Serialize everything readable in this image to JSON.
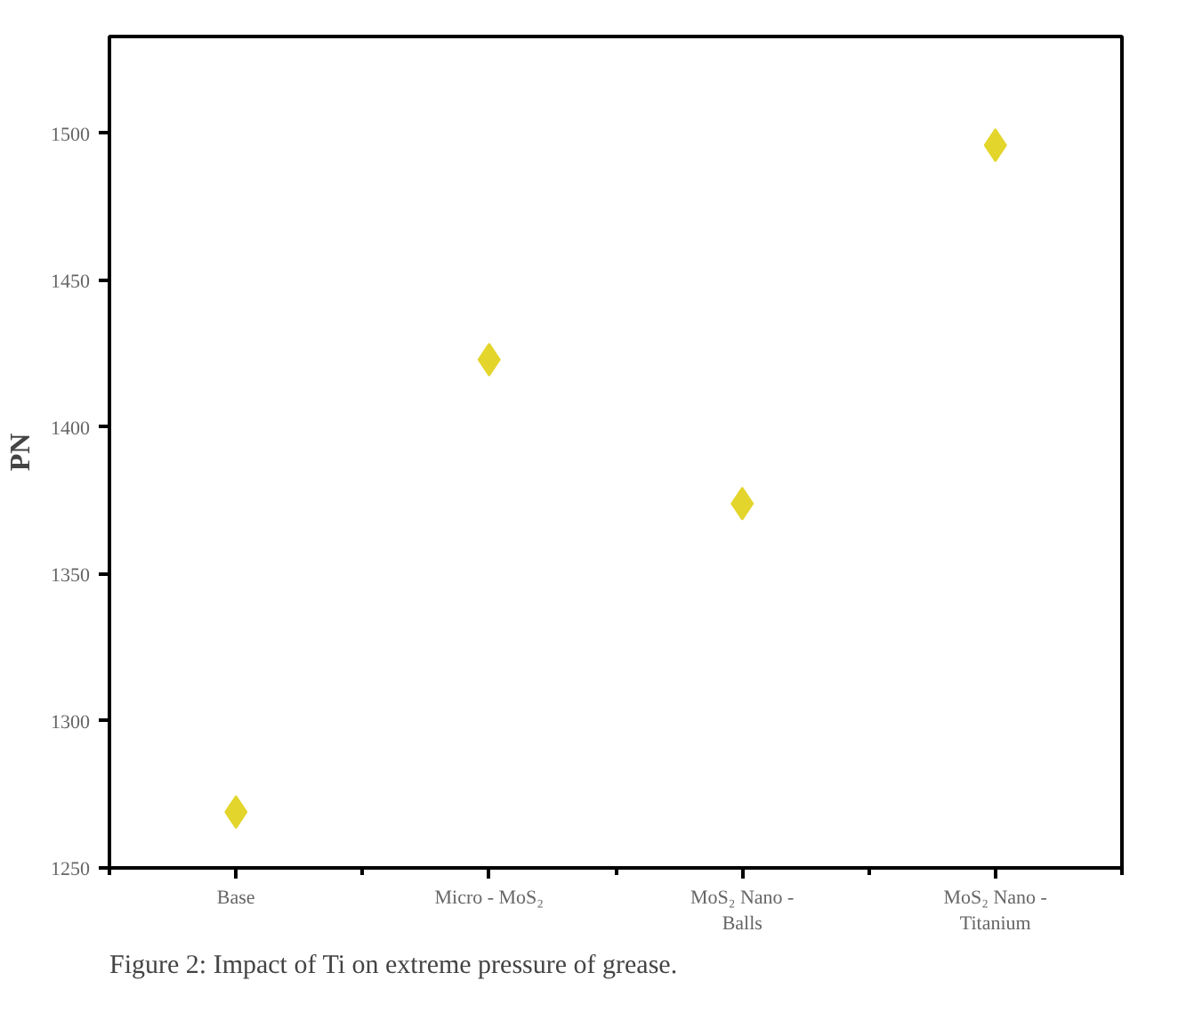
{
  "chart_data": {
    "type": "scatter",
    "ylabel": "PN",
    "categories": [
      "Base",
      "Micro - MoS₂",
      "MoS₂ Nano - Balls",
      "MoS₂ Nano - Titanium"
    ],
    "series": [
      {
        "color": "#e3d52b",
        "values": [
          1269,
          1423,
          1374,
          1496
        ]
      }
    ],
    "marker": "diamond",
    "ylim": [
      1250,
      1533
    ],
    "yticks": [
      1250,
      1300,
      1350,
      1400,
      1450,
      1500
    ],
    "grid": false,
    "annotations": [
      "Figure 2: Impact of Ti on extreme pressure of grease."
    ]
  }
}
